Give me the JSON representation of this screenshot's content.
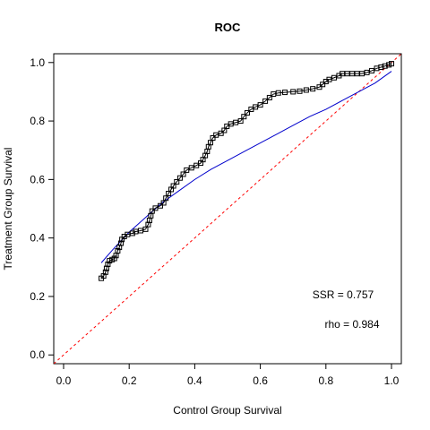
{
  "chart_data": {
    "type": "scatter",
    "title": "ROC",
    "xlabel": "Control Group Survival",
    "ylabel": "Treatment Group Survival",
    "xlim": [
      -0.03,
      1.03
    ],
    "ylim": [
      -0.03,
      1.03
    ],
    "x_ticks": [
      0.0,
      0.2,
      0.4,
      0.6,
      0.8,
      1.0
    ],
    "x_tick_labels": [
      "0.0",
      "0.2",
      "0.4",
      "0.6",
      "0.8",
      "1.0"
    ],
    "y_ticks": [
      0.0,
      0.2,
      0.4,
      0.6,
      0.8,
      1.0
    ],
    "y_tick_labels": [
      "0.0",
      "0.2",
      "0.4",
      "0.6",
      "0.8",
      "1.0"
    ],
    "grid": false,
    "annotations": [
      "SSR = 0.757",
      "rho = 0.984"
    ],
    "series": [
      {
        "marker": "open-square",
        "color": "#000000",
        "points": [
          [
            0.115,
            0.262
          ],
          [
            0.122,
            0.27
          ],
          [
            0.128,
            0.283
          ],
          [
            0.131,
            0.296
          ],
          [
            0.135,
            0.31
          ],
          [
            0.14,
            0.322
          ],
          [
            0.148,
            0.326
          ],
          [
            0.155,
            0.33
          ],
          [
            0.16,
            0.34
          ],
          [
            0.165,
            0.356
          ],
          [
            0.17,
            0.368
          ],
          [
            0.175,
            0.382
          ],
          [
            0.178,
            0.395
          ],
          [
            0.185,
            0.405
          ],
          [
            0.195,
            0.412
          ],
          [
            0.21,
            0.416
          ],
          [
            0.22,
            0.422
          ],
          [
            0.235,
            0.425
          ],
          [
            0.25,
            0.43
          ],
          [
            0.258,
            0.446
          ],
          [
            0.262,
            0.46
          ],
          [
            0.266,
            0.476
          ],
          [
            0.27,
            0.492
          ],
          [
            0.28,
            0.502
          ],
          [
            0.295,
            0.51
          ],
          [
            0.305,
            0.52
          ],
          [
            0.312,
            0.536
          ],
          [
            0.32,
            0.552
          ],
          [
            0.328,
            0.566
          ],
          [
            0.335,
            0.578
          ],
          [
            0.345,
            0.592
          ],
          [
            0.355,
            0.605
          ],
          [
            0.365,
            0.618
          ],
          [
            0.375,
            0.632
          ],
          [
            0.39,
            0.64
          ],
          [
            0.405,
            0.648
          ],
          [
            0.418,
            0.656
          ],
          [
            0.425,
            0.668
          ],
          [
            0.432,
            0.682
          ],
          [
            0.438,
            0.696
          ],
          [
            0.442,
            0.712
          ],
          [
            0.448,
            0.726
          ],
          [
            0.455,
            0.742
          ],
          [
            0.465,
            0.752
          ],
          [
            0.48,
            0.758
          ],
          [
            0.49,
            0.768
          ],
          [
            0.498,
            0.782
          ],
          [
            0.51,
            0.79
          ],
          [
            0.525,
            0.795
          ],
          [
            0.54,
            0.8
          ],
          [
            0.55,
            0.815
          ],
          [
            0.56,
            0.828
          ],
          [
            0.572,
            0.84
          ],
          [
            0.585,
            0.848
          ],
          [
            0.6,
            0.855
          ],
          [
            0.615,
            0.868
          ],
          [
            0.628,
            0.88
          ],
          [
            0.64,
            0.892
          ],
          [
            0.655,
            0.896
          ],
          [
            0.675,
            0.898
          ],
          [
            0.7,
            0.9
          ],
          [
            0.72,
            0.902
          ],
          [
            0.74,
            0.906
          ],
          [
            0.76,
            0.91
          ],
          [
            0.78,
            0.916
          ],
          [
            0.79,
            0.925
          ],
          [
            0.8,
            0.935
          ],
          [
            0.81,
            0.942
          ],
          [
            0.825,
            0.948
          ],
          [
            0.84,
            0.955
          ],
          [
            0.85,
            0.962
          ],
          [
            0.865,
            0.962
          ],
          [
            0.88,
            0.962
          ],
          [
            0.895,
            0.962
          ],
          [
            0.91,
            0.962
          ],
          [
            0.925,
            0.966
          ],
          [
            0.94,
            0.972
          ],
          [
            0.955,
            0.98
          ],
          [
            0.968,
            0.984
          ],
          [
            0.98,
            0.988
          ],
          [
            0.992,
            0.992
          ],
          [
            1.0,
            0.996
          ]
        ]
      },
      {
        "type": "line",
        "color": "#0000cc",
        "points": [
          [
            0.115,
            0.315
          ],
          [
            0.15,
            0.36
          ],
          [
            0.2,
            0.42
          ],
          [
            0.25,
            0.47
          ],
          [
            0.3,
            0.52
          ],
          [
            0.35,
            0.56
          ],
          [
            0.4,
            0.6
          ],
          [
            0.45,
            0.635
          ],
          [
            0.5,
            0.665
          ],
          [
            0.55,
            0.695
          ],
          [
            0.6,
            0.725
          ],
          [
            0.65,
            0.755
          ],
          [
            0.7,
            0.785
          ],
          [
            0.75,
            0.815
          ],
          [
            0.8,
            0.84
          ],
          [
            0.85,
            0.87
          ],
          [
            0.9,
            0.9
          ],
          [
            0.95,
            0.93
          ],
          [
            1.0,
            0.97
          ]
        ]
      },
      {
        "type": "line",
        "style": "dashed",
        "color": "#ff0000",
        "points": [
          [
            -0.03,
            -0.03
          ],
          [
            1.03,
            1.03
          ]
        ]
      }
    ]
  }
}
